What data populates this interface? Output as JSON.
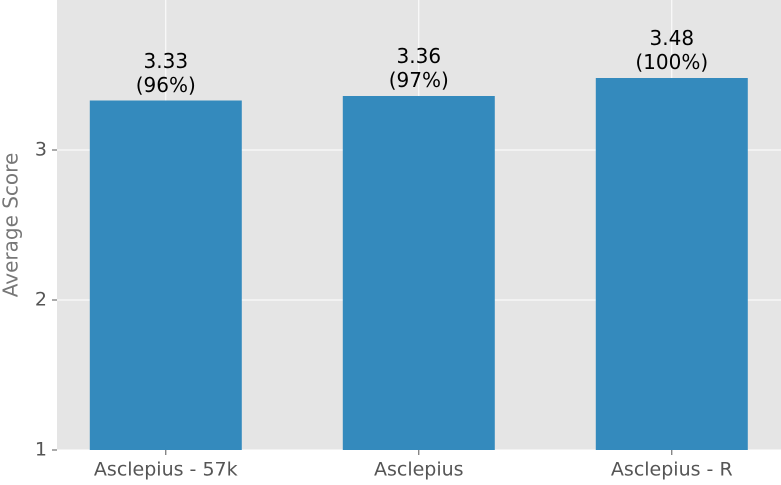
{
  "chart_data": {
    "type": "bar",
    "ylabel": "Average Score",
    "categories": [
      "Asclepius - 57k",
      "Asclepius",
      "Asclepius - R"
    ],
    "values": [
      3.33,
      3.36,
      3.48
    ],
    "value_labels": [
      "3.33\n(96%)",
      "3.36\n(97%)",
      "3.48\n(100%)"
    ],
    "color": "#348abd",
    "ylim": [
      1,
      4
    ],
    "yticks": [
      1,
      2,
      3
    ],
    "grid": true
  }
}
